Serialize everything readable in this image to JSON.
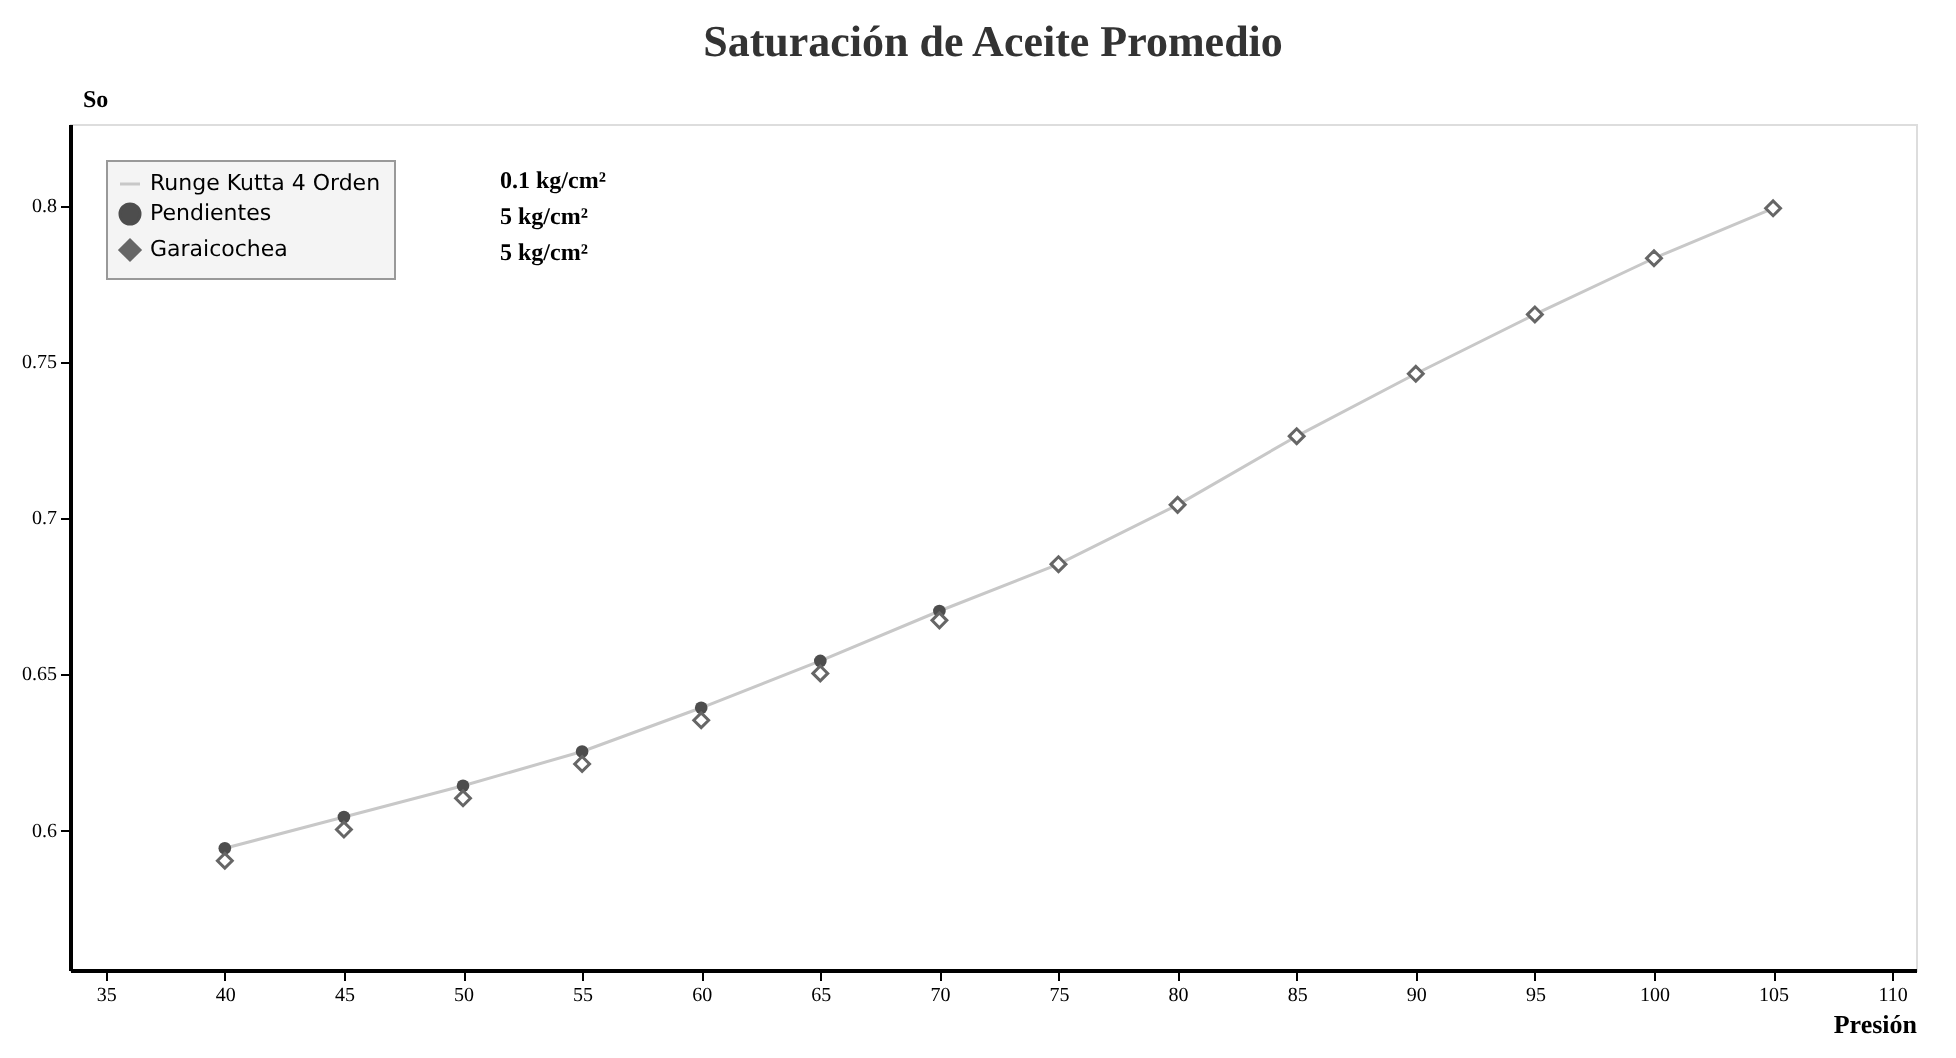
{
  "chart_data": {
    "type": "line",
    "title": "Saturación de Aceite Promedio",
    "xlabel": "Presión",
    "ylabel": "So",
    "x": [
      40,
      45,
      50,
      55,
      60,
      65,
      70,
      75,
      80,
      85,
      90,
      95,
      100,
      105
    ],
    "series": [
      {
        "name": "Runge Kutta 4 Orden",
        "type": "line",
        "color": "#c8c8c8",
        "marker": "none",
        "line_style": "solid",
        "values": [
          0.594,
          0.604,
          0.614,
          0.625,
          0.639,
          0.654,
          0.67,
          0.685,
          0.704,
          0.726,
          0.746,
          0.765,
          0.783,
          0.799
        ]
      },
      {
        "name": "Pendientes",
        "type": "scatter",
        "color": "#4d4d4d",
        "marker": "circle",
        "values": [
          0.594,
          0.604,
          0.614,
          0.625,
          0.639,
          0.654,
          0.67,
          null,
          null,
          null,
          null,
          null,
          null,
          null
        ]
      },
      {
        "name": "Garaicochea",
        "type": "scatter",
        "color": "#666666",
        "marker": "diamond",
        "values": [
          0.59,
          0.6,
          0.61,
          0.621,
          0.635,
          0.65,
          0.667,
          0.685,
          0.704,
          0.726,
          0.746,
          0.765,
          0.783,
          0.799
        ]
      }
    ],
    "annotations": [
      "0.1 kg/cm²",
      "5 kg/cm²",
      "5 kg/cm²"
    ],
    "xlim": [
      33.5,
      111
    ],
    "ylim": [
      0.555,
      0.826
    ],
    "xticks": [
      35,
      40,
      45,
      50,
      55,
      60,
      65,
      70,
      75,
      80,
      85,
      90,
      95,
      100,
      105,
      110
    ],
    "yticks": [
      0.6,
      0.65,
      0.7,
      0.75,
      0.8
    ],
    "grid": false,
    "legend": "top left"
  }
}
